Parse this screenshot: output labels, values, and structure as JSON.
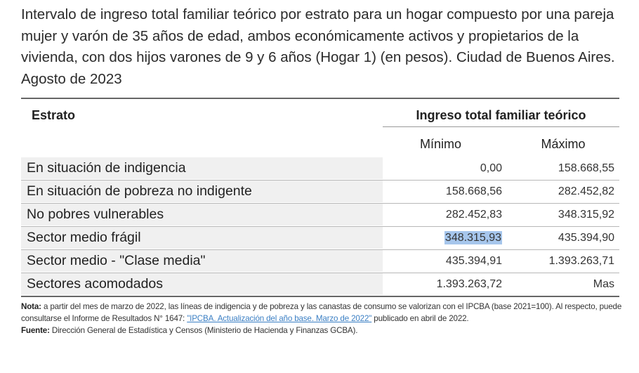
{
  "title": "Intervalo de ingreso total familiar teórico por estrato para un hogar compuesto por una pareja mujer y varón de 35 años de edad, ambos económicamente activos y propietarios de la vivienda, con dos hijos varones de 9 y 6 años (Hogar 1) (en pesos). Ciudad de Buenos Aires. Agosto de 2023",
  "table": {
    "header_estrato": "Estrato",
    "header_group": "Ingreso total familiar teórico",
    "header_min": "Mínimo",
    "header_max": "Máximo",
    "rows": [
      {
        "estrato": "En situación de indigencia",
        "min": "0,00",
        "max": "158.668,55"
      },
      {
        "estrato": "En situación de pobreza no indigente",
        "min": "158.668,56",
        "max": "282.452,82"
      },
      {
        "estrato": "No pobres vulnerables",
        "min": "282.452,83",
        "max": "348.315,92"
      },
      {
        "estrato": "Sector medio frágil",
        "min": "348.315,93",
        "max": "435.394,90"
      },
      {
        "estrato": "Sector medio - \"Clase media\"",
        "min": "435.394,91",
        "max": "1.393.263,71"
      },
      {
        "estrato": "Sectores acomodados",
        "min": "1.393.263,72",
        "max": "Mas"
      }
    ]
  },
  "notes": {
    "nota_label": "Nota:",
    "nota_text_1": " a partir del mes de marzo de 2022, las líneas de indigencia y de pobreza y las canastas de consumo se valorizan con el IPCBA (base 2021=100). Al respecto, puede consultarse el Informe de Resultados N° 1647: ",
    "nota_link": "\"IPCBA. Actualización del año base. Marzo de 2022\"",
    "nota_text_2": " publicado en abril de 2022.",
    "fuente_label": "Fuente:",
    "fuente_text": " Dirección General de Estadística y Censos (Ministerio de Hacienda y Finanzas GCBA)."
  }
}
